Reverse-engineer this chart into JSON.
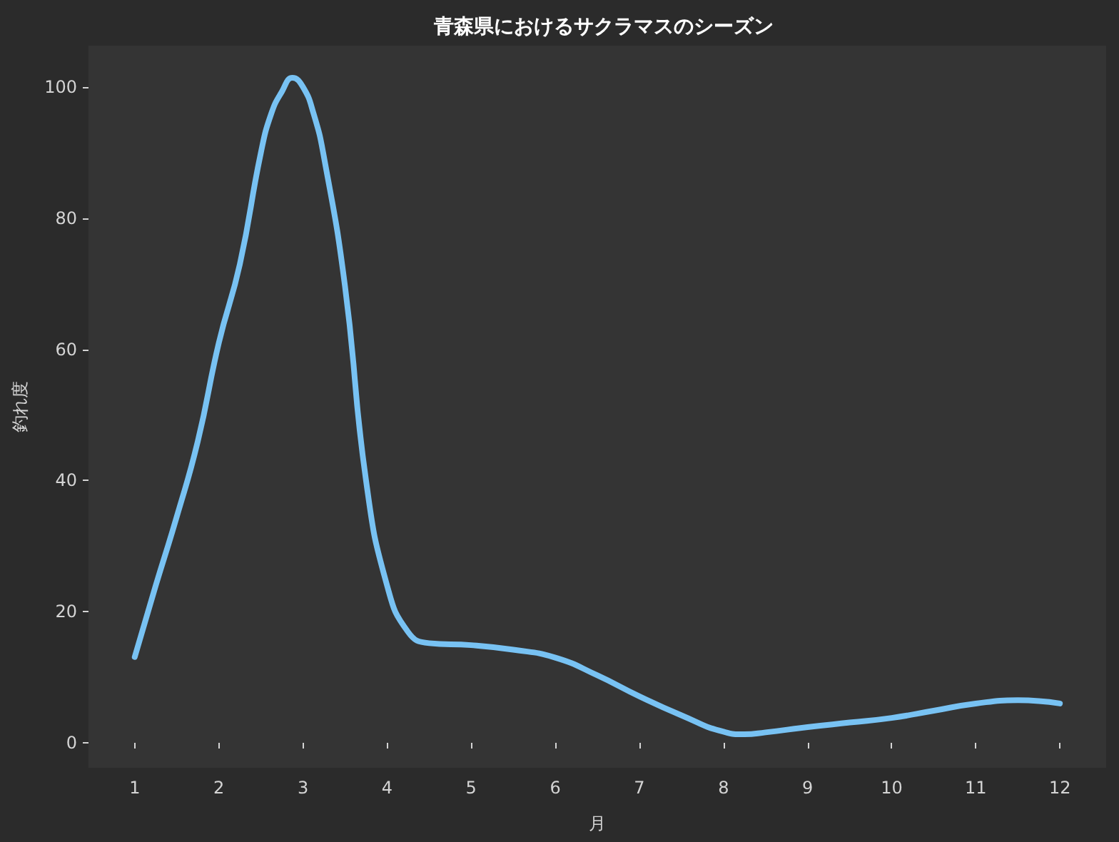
{
  "chart_data": {
    "type": "line",
    "title": "青森県におけるサクラマスのシーズン",
    "xlabel": "月",
    "ylabel": "釣れ度",
    "x": [
      1,
      1.25,
      1.5,
      1.75,
      2,
      2.25,
      2.5,
      2.625,
      2.75,
      2.875,
      3,
      3.125,
      3.25,
      3.5,
      3.75,
      4,
      4.25,
      4.5,
      5,
      5.5,
      6,
      6.5,
      7,
      7.5,
      8,
      8.25,
      8.5,
      9,
      9.5,
      10,
      10.5,
      11,
      11.5,
      12
    ],
    "series": [
      {
        "color": "#78c2f3",
        "values": [
          13.1,
          24,
          34.5,
          46,
          61,
          73,
          90,
          96,
          99.3,
          101.4,
          100,
          96,
          89.3,
          69.6,
          40,
          24,
          16.9,
          15.2,
          14.9,
          14.2,
          13,
          10.3,
          7.1,
          4.2,
          1.7,
          1.3,
          1.6,
          2.4,
          3.1,
          3.8,
          4.9,
          6,
          6.5,
          6
        ]
      }
    ],
    "xlim": [
      0.45,
      12.55
    ],
    "ylim": [
      -3.8,
      106.3
    ],
    "xticks": [
      1,
      2,
      3,
      4,
      5,
      6,
      7,
      8,
      9,
      10,
      11,
      12
    ],
    "yticks": [
      0,
      20,
      40,
      60,
      80,
      100
    ],
    "grid": false,
    "marker": "none",
    "line_style": "solid"
  }
}
